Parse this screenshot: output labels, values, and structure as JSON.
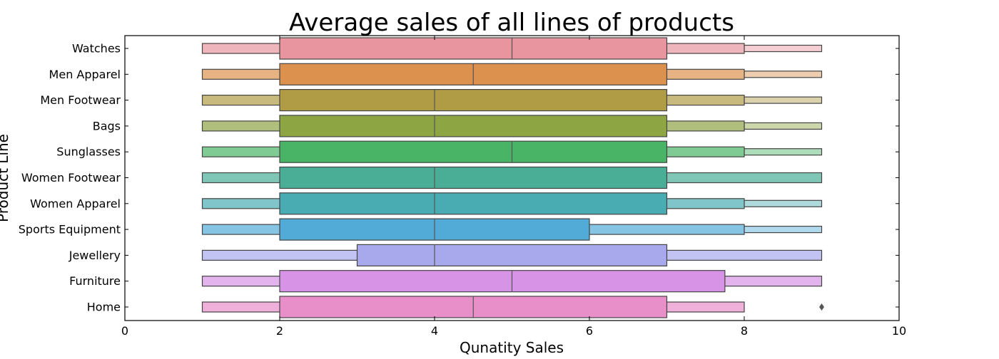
{
  "chart_data": {
    "type": "boxen",
    "title": "Average sales of all lines of products",
    "xlabel": "Qunatity Sales",
    "ylabel": "Product Line",
    "xlim": [
      0,
      10
    ],
    "xticks": [
      0,
      2,
      4,
      6,
      8,
      10
    ],
    "grid": false,
    "legend": "none",
    "categories": [
      "Watches",
      "Men Apparel",
      "Men Footwear",
      "Bags",
      "Sunglasses",
      "Women Footwear",
      "Women Apparel",
      "Sports Equipment",
      "Jewellery",
      "Furniture",
      "Home"
    ],
    "series": [
      {
        "category": "Watches",
        "color": "#e8959f",
        "median": 5,
        "levels": [
          [
            2,
            7
          ],
          [
            1,
            8
          ],
          [
            8,
            9
          ]
        ],
        "outliers": []
      },
      {
        "category": "Men Apparel",
        "color": "#dc924e",
        "median": 4.5,
        "levels": [
          [
            2,
            7
          ],
          [
            1,
            8
          ],
          [
            8,
            9
          ]
        ],
        "outliers": []
      },
      {
        "category": "Men Footwear",
        "color": "#b09c45",
        "median": 4,
        "levels": [
          [
            2,
            7
          ],
          [
            1,
            8
          ],
          [
            8,
            9
          ]
        ],
        "outliers": []
      },
      {
        "category": "Bags",
        "color": "#8ea544",
        "median": 4,
        "levels": [
          [
            2,
            7
          ],
          [
            1,
            8
          ],
          [
            8,
            9
          ]
        ],
        "outliers": []
      },
      {
        "category": "Sunglasses",
        "color": "#49b466",
        "median": 5,
        "levels": [
          [
            2,
            7
          ],
          [
            1,
            8
          ],
          [
            8,
            9
          ]
        ],
        "outliers": []
      },
      {
        "category": "Women Footwear",
        "color": "#4aae96",
        "median": 4,
        "levels": [
          [
            2,
            7
          ],
          [
            1,
            9
          ]
        ],
        "outliers": []
      },
      {
        "category": "Women Apparel",
        "color": "#4aacb3",
        "median": 4,
        "levels": [
          [
            2,
            7
          ],
          [
            1,
            8
          ],
          [
            8,
            9
          ]
        ],
        "outliers": []
      },
      {
        "category": "Sports Equipment",
        "color": "#52aad7",
        "median": 4,
        "levels": [
          [
            2,
            6
          ],
          [
            1,
            8
          ],
          [
            8,
            9
          ]
        ],
        "outliers": []
      },
      {
        "category": "Jewellery",
        "color": "#a8a9ec",
        "median": 4,
        "levels": [
          [
            3,
            7
          ],
          [
            1,
            9
          ]
        ],
        "outliers": []
      },
      {
        "category": "Furniture",
        "color": "#d793e6",
        "median": 5,
        "levels": [
          [
            2,
            7.75
          ],
          [
            1,
            9
          ]
        ],
        "outliers": []
      },
      {
        "category": "Home",
        "color": "#e88fca",
        "median": 4.5,
        "levels": [
          [
            2,
            7
          ],
          [
            1,
            8
          ]
        ],
        "outliers": [
          9
        ]
      }
    ]
  }
}
